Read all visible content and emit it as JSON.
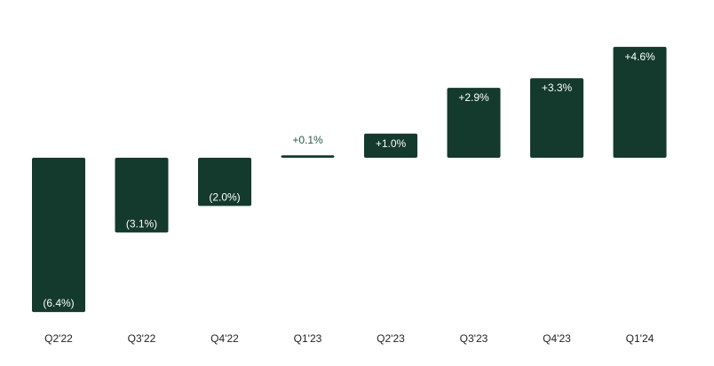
{
  "chart_data": {
    "type": "bar",
    "title": "",
    "xlabel": "",
    "ylabel": "",
    "categories": [
      "Q2'22",
      "Q3'22",
      "Q4'22",
      "Q1'23",
      "Q2'23",
      "Q3'23",
      "Q4'23",
      "Q1'24"
    ],
    "values": [
      -6.4,
      -3.1,
      -2.0,
      0.1,
      1.0,
      2.9,
      3.3,
      4.6
    ],
    "labels": [
      "(6.4%)",
      "(3.1%)",
      "(2.0%)",
      "+0.1%",
      "+1.0%",
      "+2.9%",
      "+3.3%",
      "+4.6%"
    ],
    "ylim": [
      -6.4,
      4.6
    ],
    "unit": "%",
    "grid": false,
    "legend": "none",
    "colors": {
      "bar": "#133a2c",
      "label_inside": "#ffffff",
      "label_outside": "#2b5a45",
      "tick": "#222222"
    }
  }
}
